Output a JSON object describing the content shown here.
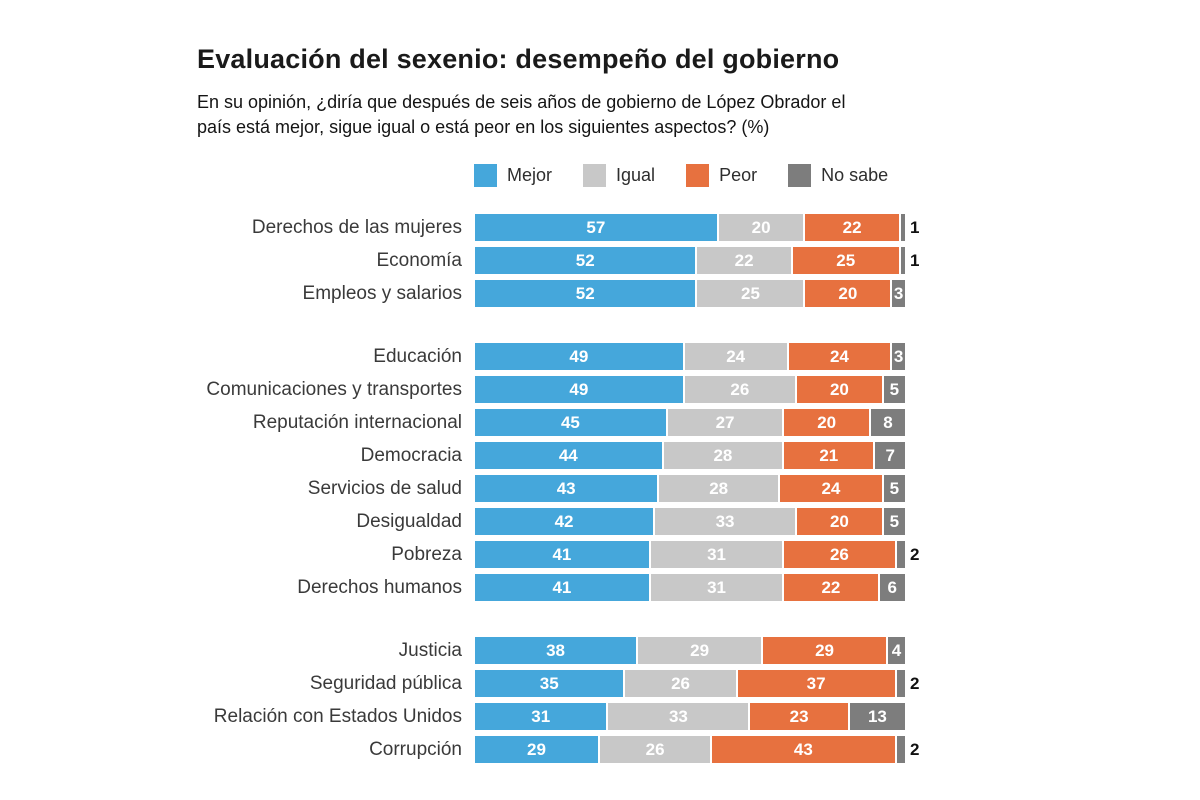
{
  "header": {
    "title": "Evaluación del sexenio: desempeño del gobierno",
    "subtitle": "En su opinión, ¿diría que después de seis años de gobierno de López Obrador el\npaís está mejor, sigue igual o está peor en los siguientes aspectos? (%)"
  },
  "chart_data": {
    "type": "bar",
    "orientation": "horizontal",
    "stacked": true,
    "unit": "%",
    "xlim": [
      0,
      100
    ],
    "grid": false,
    "legend_position": "top",
    "title": "Evaluación del sexenio: desempeño del gobierno",
    "subtitle": "En su opinión, ¿diría que después de seis años de gobierno de López Obrador el país está mejor, sigue igual o está peor en los siguientes aspectos? (%)",
    "series_names": [
      "Mejor",
      "Igual",
      "Peor",
      "No sabe"
    ],
    "colors": {
      "Mejor": "#45a7db",
      "Igual": "#c8c8c8",
      "Peor": "#e7713f",
      "No sabe": "#7d7d7d"
    },
    "value_label_inside_color": "#ffffff",
    "value_label_outside_color": "#111111",
    "outside_label_threshold": 3,
    "groups": [
      {
        "rows": [
          {
            "label": "Derechos de las mujeres",
            "values": [
              57,
              20,
              22,
              1
            ]
          },
          {
            "label": "Economía",
            "values": [
              52,
              22,
              25,
              1
            ]
          },
          {
            "label": "Empleos y salarios",
            "values": [
              52,
              25,
              20,
              3
            ]
          }
        ]
      },
      {
        "rows": [
          {
            "label": "Educación",
            "values": [
              49,
              24,
              24,
              3
            ]
          },
          {
            "label": "Comunicaciones y transportes",
            "values": [
              49,
              26,
              20,
              5
            ]
          },
          {
            "label": "Reputación internacional",
            "values": [
              45,
              27,
              20,
              8
            ]
          },
          {
            "label": "Democracia",
            "values": [
              44,
              28,
              21,
              7
            ]
          },
          {
            "label": "Servicios de salud",
            "values": [
              43,
              28,
              24,
              5
            ]
          },
          {
            "label": "Desigualdad",
            "values": [
              42,
              33,
              20,
              5
            ]
          },
          {
            "label": "Pobreza",
            "values": [
              41,
              31,
              26,
              2
            ]
          },
          {
            "label": "Derechos humanos",
            "values": [
              41,
              31,
              22,
              6
            ]
          }
        ]
      },
      {
        "rows": [
          {
            "label": "Justicia",
            "values": [
              38,
              29,
              29,
              4
            ]
          },
          {
            "label": "Seguridad pública",
            "values": [
              35,
              26,
              37,
              2
            ]
          },
          {
            "label": "Relación con Estados Unidos",
            "values": [
              31,
              33,
              23,
              13
            ]
          },
          {
            "label": "Corrupción",
            "values": [
              29,
              26,
              43,
              2
            ]
          }
        ]
      }
    ]
  }
}
